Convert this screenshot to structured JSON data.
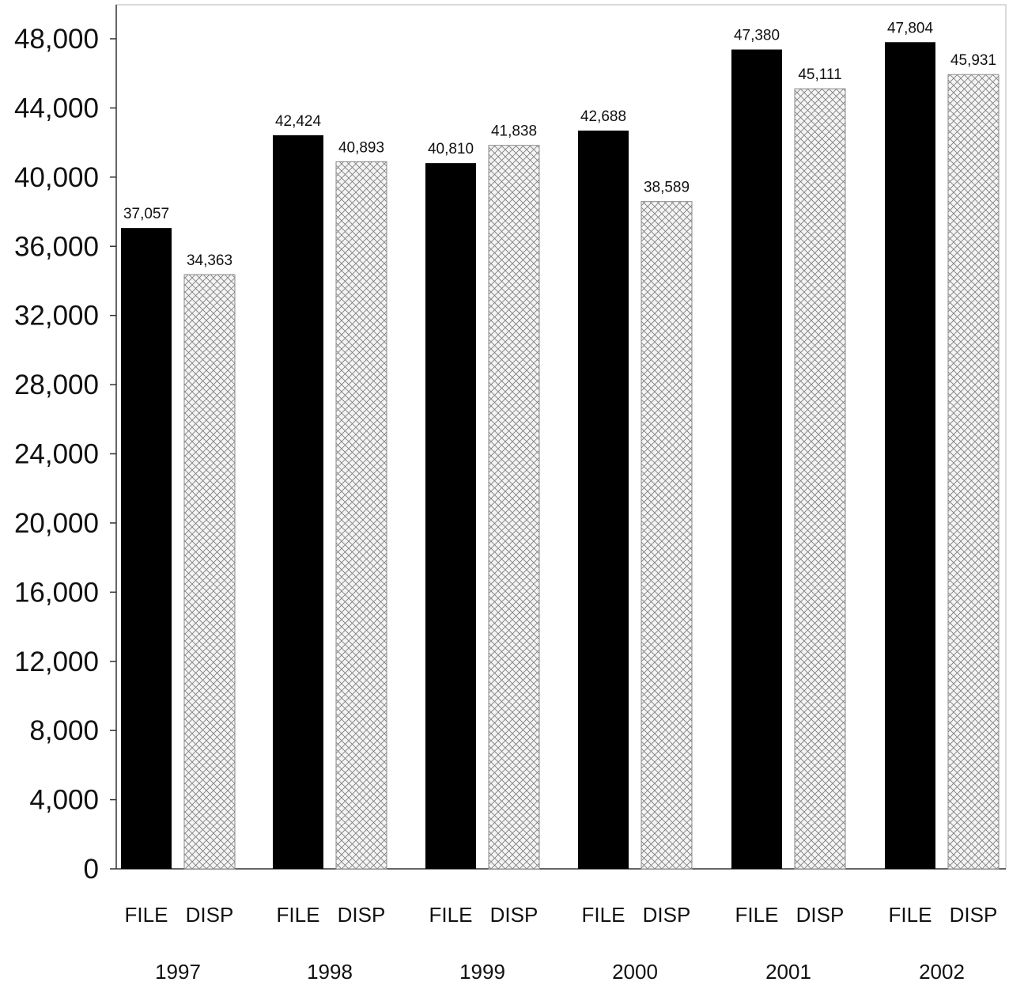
{
  "chart_data": {
    "type": "bar",
    "categories": [
      "1997",
      "1998",
      "1999",
      "2000",
      "2001",
      "2002"
    ],
    "series": [
      {
        "name": "FILE",
        "values": [
          37057,
          42424,
          40810,
          42688,
          47380,
          47804
        ],
        "labels": [
          "37,057",
          "42,424",
          "40,810",
          "42,688",
          "47,380",
          "47,804"
        ]
      },
      {
        "name": "DISP",
        "values": [
          34363,
          40893,
          41838,
          38589,
          45111,
          45931
        ],
        "labels": [
          "34,363",
          "40,893",
          "41,838",
          "38,589",
          "45,111",
          "45,931"
        ]
      }
    ],
    "ylim": [
      0,
      48000
    ],
    "yticks": [
      0,
      4000,
      8000,
      12000,
      16000,
      20000,
      24000,
      28000,
      32000,
      36000,
      40000,
      44000,
      48000
    ],
    "ytick_labels": [
      "0",
      "4,000",
      "8,000",
      "12,000",
      "16,000",
      "20,000",
      "24,000",
      "28,000",
      "32,000",
      "36,000",
      "40,000",
      "44,000",
      "48,000"
    ],
    "title": "",
    "xlabel": "",
    "ylabel": "",
    "grid": false,
    "legend": "none",
    "colors": {
      "FILE": "#000000",
      "DISP": "#f2f2f2",
      "hatch": "#7a7a7a",
      "axis": "#333333"
    }
  }
}
